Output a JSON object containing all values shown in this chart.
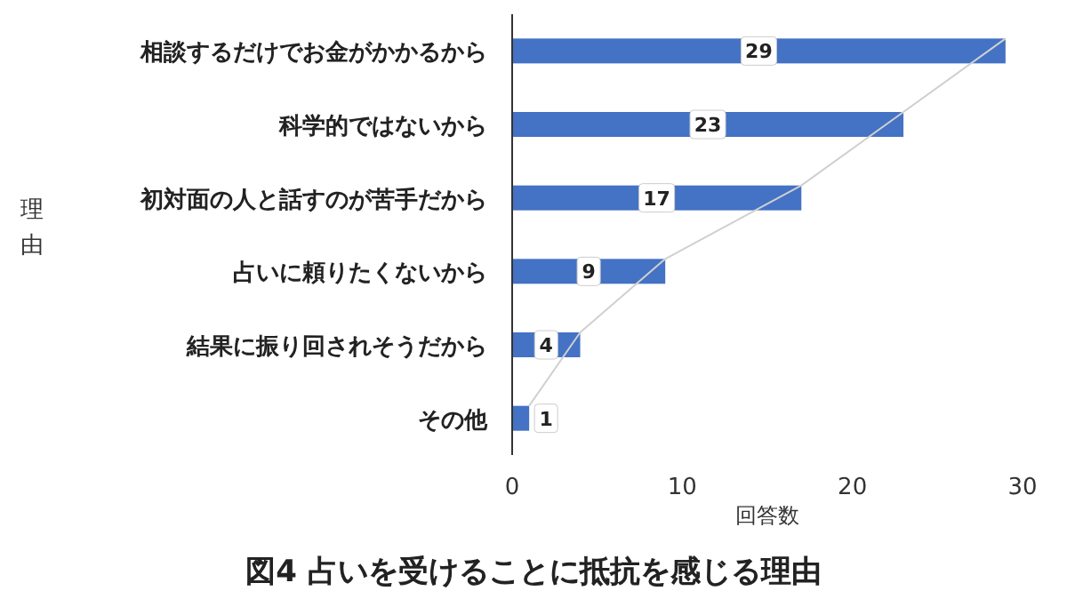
{
  "chart_data": {
    "type": "bar",
    "orientation": "horizontal",
    "title": "図4 占いを受けることに抵抗を感じる理由",
    "xlabel": "回答数",
    "ylabel": "理由",
    "categories": [
      "相談するだけでお金がかかるから",
      "科学的ではないから",
      "初対面の人と話すのが苦手だから",
      "占いに頼りたくないから",
      "結果に振り回されそうだから",
      "その他"
    ],
    "series": [
      {
        "color": "#4472c4",
        "values": [
          29,
          23,
          17,
          9,
          4,
          1
        ],
        "value_labels": [
          "29",
          "23",
          "17",
          "9",
          "4",
          "1"
        ]
      },
      {
        "type": "line",
        "color": "#d0d0d0",
        "values": [
          29,
          23,
          17,
          9,
          4,
          1
        ]
      }
    ],
    "xlim": [
      0,
      30
    ],
    "xticks": [
      0,
      10,
      20,
      30
    ],
    "grid": false
  }
}
